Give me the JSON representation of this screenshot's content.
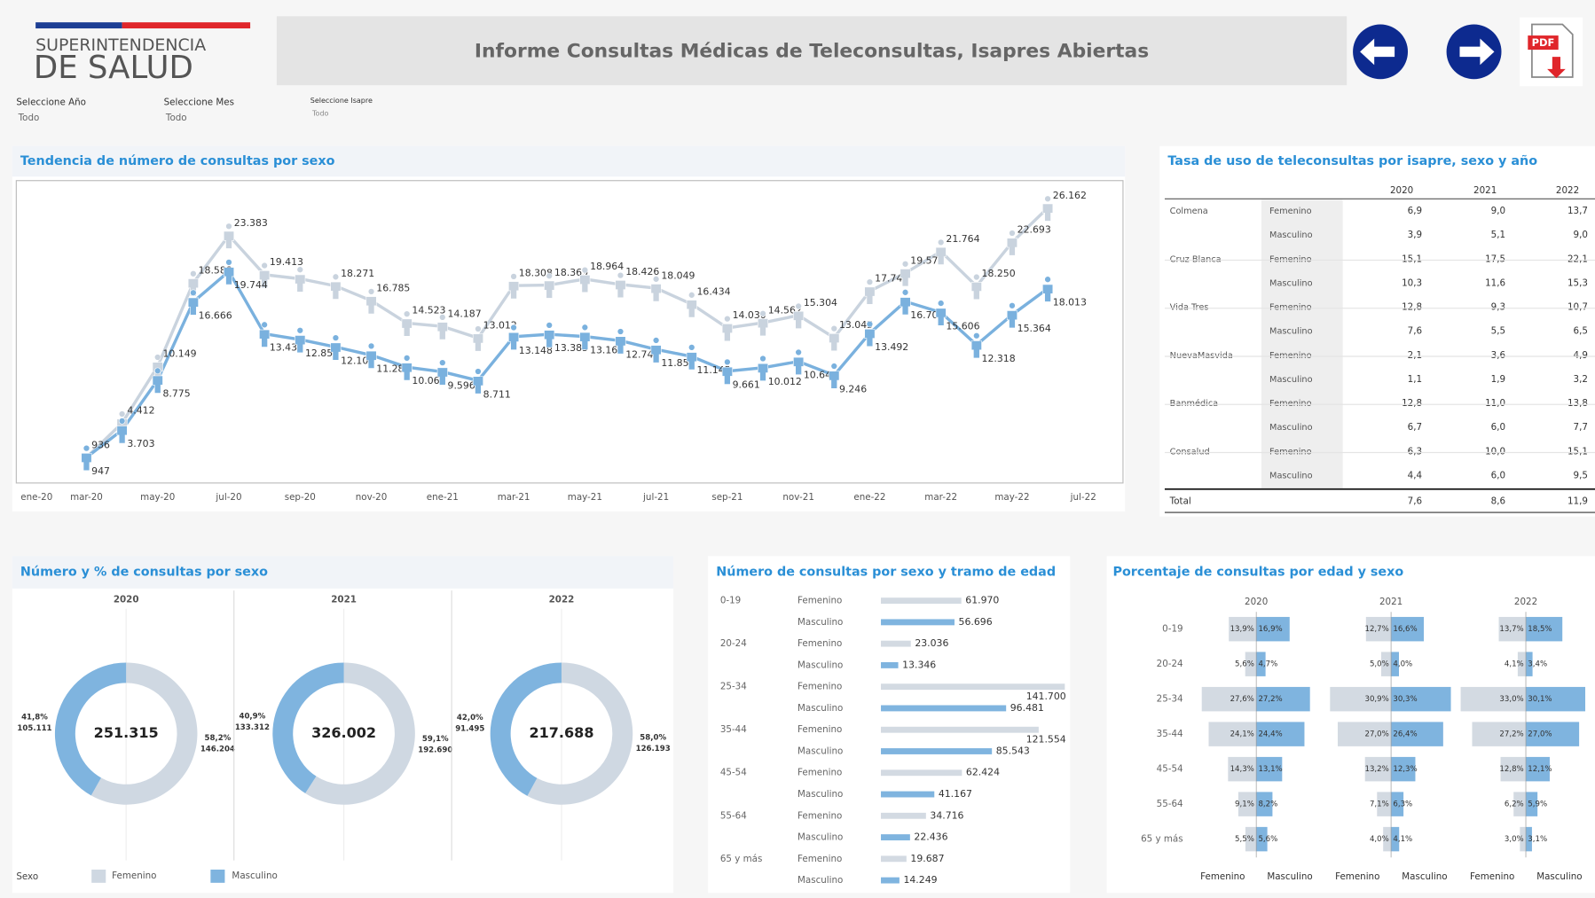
{
  "header": {
    "logo": [
      "SUPERINTENDENCIA",
      "DE SALUD"
    ],
    "title": "Informe Consultas Médicas de Teleconsultas, Isapres Abiertas",
    "pdf": "PDF"
  },
  "filters": [
    {
      "label": "Seleccione Año",
      "value": "Todo"
    },
    {
      "label": "Seleccione Mes",
      "value": "Todo"
    },
    {
      "label": "Seleccione Isapre",
      "value": "Todo"
    }
  ],
  "legend": {
    "title": "Sexo",
    "items": [
      {
        "name": "Femenino",
        "color": "#cfd8e2"
      },
      {
        "name": "Masculino",
        "color": "#7fb4df"
      }
    ]
  },
  "chart_data": [
    {
      "type": "line",
      "title": "Tendencia de número de consultas por sexo",
      "categories": [
        "ene-20",
        null,
        "mar-20",
        null,
        "may-20",
        null,
        "jul-20",
        null,
        "sep-20",
        null,
        "nov-20",
        null,
        "ene-21",
        null,
        "mar-21",
        null,
        "may-21",
        null,
        "jul-21",
        null,
        "sep-21",
        null,
        "nov-21",
        null,
        "ene-22",
        null,
        "mar-22",
        null,
        "may-22",
        null,
        "jul-22"
      ],
      "ylim": [
        0,
        28000
      ],
      "series": [
        {
          "color": "#c9d3de",
          "values": [
            null,
            null,
            936,
            4412,
            10149,
            18588,
            23383,
            19413,
            19000,
            18271,
            16785,
            14523,
            14187,
            13012,
            18308,
            18369,
            18964,
            18426,
            18049,
            16434,
            14030,
            14562,
            15304,
            13045,
            17748,
            19576,
            21764,
            18250,
            22693,
            26162,
            null
          ],
          "value_labels": [
            null,
            null,
            "936",
            "4.412",
            "10.149",
            "18.588",
            "23.383",
            "19.413",
            null,
            "18.271",
            "16.785",
            "14.523",
            "14.187",
            "13.012",
            "18.308",
            "18.369",
            "18.964",
            "18.426",
            "18.049",
            "16.434",
            "14.030",
            "14.562",
            "15.304",
            "13.045",
            "17.748",
            "19.576",
            "21.764",
            "18.250",
            "22.693",
            "26.162",
            null
          ]
        },
        {
          "color": "#7ab1de",
          "values": [
            null,
            null,
            947,
            3703,
            8775,
            16666,
            19744,
            13433,
            12856,
            12106,
            11280,
            10069,
            9596,
            8711,
            13148,
            13385,
            13165,
            12742,
            11855,
            11145,
            9661,
            10012,
            10646,
            9246,
            13492,
            16702,
            15606,
            12318,
            15364,
            18013,
            null
          ],
          "value_labels": [
            null,
            null,
            "947",
            "3.703",
            "8.775",
            "16.666",
            "19.744",
            "13.433",
            "12.856",
            "12.106",
            "11.280",
            "10.069",
            "9.596",
            "8.711",
            "13.148",
            "13.385",
            "13.165",
            "12.742",
            "11.855",
            "11.145",
            "9.661",
            "10.012",
            "10.646",
            "9.246",
            "13.492",
            "16.702",
            "15.606",
            "12.318",
            "15.364",
            "18.013",
            null
          ]
        }
      ]
    },
    {
      "type": "pie",
      "title": "Número  y % de consultas por sexo",
      "colors": [
        "#cfd8e2",
        "#7fb4df"
      ],
      "panels": [
        {
          "title": "2020",
          "total": 251315,
          "total_label": "251.315",
          "values": [
            146204,
            105111
          ],
          "value_labels": [
            "146.204",
            "105.111"
          ],
          "percent_labels": [
            "58,2%",
            "41,8%"
          ]
        },
        {
          "title": "2021",
          "total": 326002,
          "total_label": "326.002",
          "values": [
            192690,
            133312
          ],
          "value_labels": [
            "192.690",
            "133.312"
          ],
          "percent_labels": [
            "59,1%",
            "40,9%"
          ]
        },
        {
          "title": "2022",
          "total": 217688,
          "total_label": "217.688",
          "values": [
            126193,
            91495
          ],
          "value_labels": [
            "126.193",
            "91.495"
          ],
          "percent_labels": [
            "58,0%",
            "42,0%"
          ]
        }
      ]
    },
    {
      "type": "bar",
      "horizontal": true,
      "title": "Número de consultas por sexo y tramo de edad",
      "categories": [
        "0-19",
        "20-24",
        "25-34",
        "35-44",
        "45-54",
        "55-64",
        "65 y más"
      ],
      "xlim": [
        0,
        145000
      ],
      "series": [
        {
          "name": "Femenino",
          "color": "#d3dae2",
          "values": [
            61970,
            23036,
            141700,
            121554,
            62424,
            34716,
            19687
          ],
          "value_labels": [
            "61.970",
            "23.036",
            "141.700",
            "121.554",
            "62.424",
            "34.716",
            "19.687"
          ]
        },
        {
          "name": "Masculino",
          "color": "#7fb4df",
          "values": [
            56696,
            13346,
            96481,
            85543,
            41167,
            22436,
            14249
          ],
          "value_labels": [
            "56.696",
            "13.346",
            "96.481",
            "85.543",
            "41.167",
            "22.436",
            "14.249"
          ]
        }
      ]
    },
    {
      "type": "pyramid",
      "title": "Porcentaje de consultas por edad y sexo",
      "categories": [
        "0-19",
        "20-24",
        "25-34",
        "35-44",
        "45-54",
        "55-64",
        "65 y más"
      ],
      "xlim": [
        0,
        34
      ],
      "panels": [
        {
          "title": "2020",
          "series": [
            {
              "name": "Femenino",
              "color": "#d3dae2",
              "values": [
                13.9,
                5.6,
                27.6,
                24.1,
                14.3,
                9.1,
                5.5
              ],
              "value_labels": [
                "13,9%",
                "5,6%",
                "27,6%",
                "24,1%",
                "14,3%",
                "9,1%",
                "5,5%"
              ]
            },
            {
              "name": "Masculino",
              "color": "#7fb4df",
              "values": [
                16.9,
                4.7,
                27.2,
                24.4,
                13.1,
                8.2,
                5.6
              ],
              "value_labels": [
                "16,9%",
                "4,7%",
                "27,2%",
                "24,4%",
                "13,1%",
                "8,2%",
                "5,6%"
              ]
            }
          ]
        },
        {
          "title": "2021",
          "series": [
            {
              "name": "Femenino",
              "color": "#d3dae2",
              "values": [
                12.7,
                5.0,
                30.9,
                27.0,
                13.2,
                7.1,
                4.0
              ],
              "value_labels": [
                "12,7%",
                "5,0%",
                "30,9%",
                "27,0%",
                "13,2%",
                "7,1%",
                "4,0%"
              ]
            },
            {
              "name": "Masculino",
              "color": "#7fb4df",
              "values": [
                16.6,
                4.0,
                30.3,
                26.4,
                12.3,
                6.3,
                4.1
              ],
              "value_labels": [
                "16,6%",
                "4,0%",
                "30,3%",
                "26,4%",
                "12,3%",
                "6,3%",
                "4,1%"
              ]
            }
          ]
        },
        {
          "title": "2022",
          "series": [
            {
              "name": "Femenino",
              "color": "#d3dae2",
              "values": [
                13.7,
                4.1,
                33.0,
                27.2,
                12.8,
                6.2,
                3.0
              ],
              "value_labels": [
                "13,7%",
                "4,1%",
                "33,0%",
                "27,2%",
                "12,8%",
                "6,2%",
                "3,0%"
              ]
            },
            {
              "name": "Masculino",
              "color": "#7fb4df",
              "values": [
                18.5,
                3.4,
                30.1,
                27.0,
                12.1,
                5.9,
                3.1
              ],
              "value_labels": [
                "18,5%",
                "3,4%",
                "30,1%",
                "27,0%",
                "12,1%",
                "5,9%",
                "3,1%"
              ]
            }
          ]
        }
      ]
    }
  ],
  "table": {
    "title": "Tasa de uso de teleconsultas por isapre, sexo y año",
    "columns": [
      "2020",
      "2021",
      "2022"
    ],
    "groups": [
      {
        "isapre": "Colmena",
        "rows": [
          {
            "sexo": "Femenino",
            "values": [
              "6,9",
              "9,0",
              "13,7"
            ]
          },
          {
            "sexo": "Masculino",
            "values": [
              "3,9",
              "5,1",
              "9,0"
            ]
          }
        ]
      },
      {
        "isapre": "Cruz Blanca",
        "rows": [
          {
            "sexo": "Femenino",
            "values": [
              "15,1",
              "17,5",
              "22,1"
            ]
          },
          {
            "sexo": "Masculino",
            "values": [
              "10,3",
              "11,6",
              "15,3"
            ]
          }
        ]
      },
      {
        "isapre": "Vida Tres",
        "rows": [
          {
            "sexo": "Femenino",
            "values": [
              "12,8",
              "9,3",
              "10,7"
            ]
          },
          {
            "sexo": "Masculino",
            "values": [
              "7,6",
              "5,5",
              "6,5"
            ]
          }
        ]
      },
      {
        "isapre": "NuevaMasvida",
        "rows": [
          {
            "sexo": "Femenino",
            "values": [
              "2,1",
              "3,6",
              "4,9"
            ]
          },
          {
            "sexo": "Masculino",
            "values": [
              "1,1",
              "1,9",
              "3,2"
            ]
          }
        ]
      },
      {
        "isapre": "Banmédica",
        "rows": [
          {
            "sexo": "Femenino",
            "values": [
              "12,8",
              "11,0",
              "13,8"
            ]
          },
          {
            "sexo": "Masculino",
            "values": [
              "6,7",
              "6,0",
              "7,7"
            ]
          }
        ]
      },
      {
        "isapre": "Consalud",
        "rows": [
          {
            "sexo": "Femenino",
            "values": [
              "6,3",
              "10,0",
              "15,1"
            ]
          },
          {
            "sexo": "Masculino",
            "values": [
              "4,4",
              "6,0",
              "9,5"
            ]
          }
        ]
      }
    ],
    "total": {
      "label": "Total",
      "values": [
        "7,6",
        "8,6",
        "11,9"
      ]
    }
  }
}
